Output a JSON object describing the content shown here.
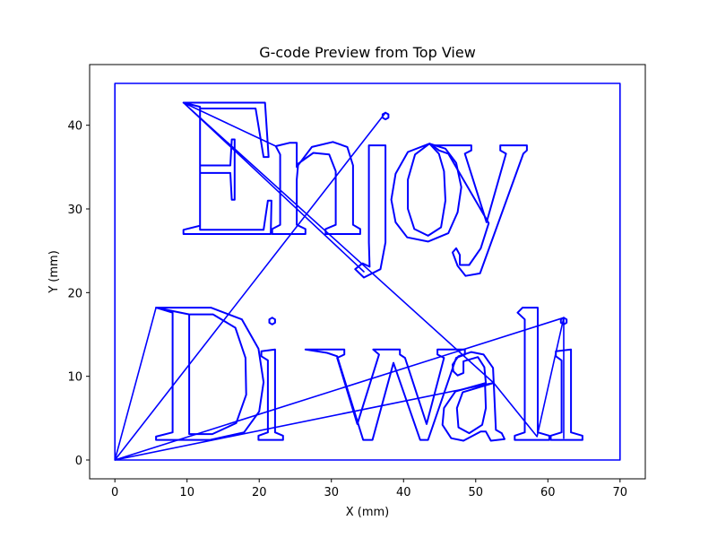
{
  "chart_data": {
    "type": "line",
    "title": "G-code Preview from Top View",
    "xlabel": "X (mm)",
    "ylabel": "Y (mm)",
    "xlim": [
      -3.5,
      73.5
    ],
    "ylim": [
      -2.25,
      47.25
    ],
    "xticks": [
      0,
      10,
      20,
      30,
      40,
      50,
      60,
      70
    ],
    "yticks": [
      0,
      10,
      20,
      30,
      40
    ],
    "grid": false,
    "legend": "none",
    "line_color": "#0000ff",
    "series": [
      {
        "role": "bed-border",
        "points": [
          [
            0,
            0
          ],
          [
            0,
            45
          ],
          [
            70,
            45
          ],
          [
            70,
            0
          ],
          [
            0,
            0
          ]
        ]
      },
      {
        "role": "travel-moves",
        "points": [
          [
            0,
            0
          ],
          [
            5.7,
            18.2
          ],
          [
            0,
            0
          ],
          [
            52.5,
            9.2
          ],
          [
            0,
            0
          ],
          [
            62.2,
            17
          ],
          [
            0,
            0
          ],
          [
            37.5,
            41.5
          ],
          [
            0,
            0
          ]
        ]
      },
      {
        "role": "crossing-moves",
        "points": [
          [
            9.5,
            42.7
          ],
          [
            52.5,
            9.2
          ],
          [
            9.5,
            42.7
          ],
          [
            22.3,
            37.5
          ],
          [
            9.5,
            42.7
          ],
          [
            34.5,
            22.5
          ]
        ]
      },
      {
        "role": "letter-E",
        "points": [
          [
            9.5,
            42.7
          ],
          [
            20.8,
            42.7
          ],
          [
            21.3,
            36.2
          ],
          [
            20.6,
            36.2
          ],
          [
            19.5,
            42
          ],
          [
            11.8,
            42
          ],
          [
            11.8,
            35.2
          ],
          [
            16,
            35.2
          ],
          [
            16.2,
            38.3
          ],
          [
            16.6,
            38.3
          ],
          [
            16.6,
            31.1
          ],
          [
            16.2,
            31.1
          ],
          [
            16,
            34.3
          ],
          [
            11.8,
            34.3
          ],
          [
            11.8,
            27.5
          ],
          [
            20.6,
            27.5
          ],
          [
            21.2,
            31
          ],
          [
            21.7,
            31
          ],
          [
            21.6,
            27
          ],
          [
            9.5,
            27
          ],
          [
            9.5,
            27.5
          ],
          [
            11.8,
            28
          ],
          [
            11.8,
            42.2
          ],
          [
            9.5,
            42.7
          ]
        ]
      },
      {
        "role": "letter-n",
        "points": [
          [
            22.3,
            37.5
          ],
          [
            24.2,
            37.9
          ],
          [
            25.2,
            37.9
          ],
          [
            25.2,
            35
          ],
          [
            27.3,
            37.4
          ],
          [
            30.2,
            38
          ],
          [
            32.2,
            37.4
          ],
          [
            33,
            35.2
          ],
          [
            33,
            28.1
          ],
          [
            34,
            27.6
          ],
          [
            34,
            27
          ],
          [
            29.2,
            27
          ],
          [
            29.2,
            27.6
          ],
          [
            30.6,
            28.1
          ],
          [
            30.6,
            34.5
          ],
          [
            29.7,
            36.5
          ],
          [
            27.5,
            36.7
          ],
          [
            25.4,
            35.4
          ],
          [
            25.2,
            33.5
          ],
          [
            25.2,
            28.1
          ],
          [
            26.4,
            27.6
          ],
          [
            26.4,
            27
          ],
          [
            21.8,
            27
          ],
          [
            21.8,
            27.6
          ],
          [
            22.9,
            28.1
          ],
          [
            22.9,
            36.5
          ],
          [
            22.3,
            37.5
          ]
        ]
      },
      {
        "role": "letter-j",
        "points": [
          [
            35.2,
            37.6
          ],
          [
            37.5,
            37.6
          ],
          [
            37.5,
            26
          ],
          [
            36.8,
            22.8
          ],
          [
            34.5,
            21.8
          ],
          [
            33.3,
            22.8
          ],
          [
            34.3,
            23.5
          ],
          [
            35.3,
            23.1
          ],
          [
            35.2,
            26
          ],
          [
            35.2,
            37.6
          ]
        ]
      },
      {
        "role": "letter-j-dot",
        "points": [
          [
            37.5,
            41.5
          ],
          [
            37.1,
            41.3
          ],
          [
            37.1,
            40.9
          ],
          [
            37.5,
            40.7
          ],
          [
            37.9,
            40.9
          ],
          [
            37.9,
            41.3
          ],
          [
            37.5,
            41.5
          ]
        ]
      },
      {
        "role": "letter-o",
        "points": [
          [
            43.6,
            37.8
          ],
          [
            40.6,
            36.8
          ],
          [
            38.9,
            34.2
          ],
          [
            38.3,
            31.1
          ],
          [
            38.9,
            28.4
          ],
          [
            40.5,
            26.6
          ],
          [
            43.4,
            26.1
          ],
          [
            46.2,
            27.1
          ],
          [
            47.5,
            29.6
          ],
          [
            48,
            32.6
          ],
          [
            47.3,
            35.5
          ],
          [
            45.8,
            37.2
          ],
          [
            43.6,
            37.8
          ],
          [
            41.6,
            36.5
          ],
          [
            40.6,
            33.5
          ],
          [
            40.6,
            30
          ],
          [
            41.5,
            27.6
          ],
          [
            43.4,
            26.8
          ],
          [
            45.2,
            27.8
          ],
          [
            45.8,
            31
          ],
          [
            45.6,
            34.5
          ],
          [
            44.9,
            36.6
          ],
          [
            43.6,
            37.8
          ]
        ]
      },
      {
        "role": "letter-y",
        "points": [
          [
            44,
            37.6
          ],
          [
            49.4,
            37.6
          ],
          [
            49.4,
            37
          ],
          [
            48.5,
            36.6
          ],
          [
            51.5,
            28.4
          ],
          [
            54.2,
            36.6
          ],
          [
            53.4,
            37
          ],
          [
            53.4,
            37.6
          ],
          [
            57.1,
            37.6
          ],
          [
            57.1,
            37
          ],
          [
            56.6,
            36.6
          ],
          [
            50.6,
            22.3
          ],
          [
            48.6,
            22
          ],
          [
            47.5,
            23.2
          ],
          [
            46.8,
            24.8
          ],
          [
            47.3,
            25.3
          ],
          [
            47.8,
            24.5
          ],
          [
            47.8,
            23.3
          ],
          [
            49.1,
            23.3
          ],
          [
            50.7,
            25.3
          ],
          [
            51.8,
            28.3
          ],
          [
            46.2,
            36.6
          ],
          [
            44.9,
            37
          ],
          [
            44,
            37.6
          ]
        ]
      },
      {
        "role": "letter-D",
        "points": [
          [
            5.7,
            18.2
          ],
          [
            13.3,
            18.2
          ],
          [
            17.6,
            16.8
          ],
          [
            19.9,
            13.3
          ],
          [
            20.6,
            9.3
          ],
          [
            20,
            5.8
          ],
          [
            17.9,
            3.3
          ],
          [
            13.2,
            2.4
          ],
          [
            5.7,
            2.4
          ],
          [
            5.7,
            2.8
          ],
          [
            8,
            3.3
          ],
          [
            8,
            17.6
          ],
          [
            5.7,
            18.2
          ],
          [
            10.3,
            17.4
          ],
          [
            13.6,
            17.4
          ],
          [
            16.7,
            15.8
          ],
          [
            18.1,
            12.2
          ],
          [
            18.2,
            7.8
          ],
          [
            16.8,
            4.4
          ],
          [
            13.5,
            3.1
          ],
          [
            10.3,
            3.1
          ],
          [
            10.3,
            17.4
          ]
        ]
      },
      {
        "role": "letter-i",
        "points": [
          [
            22.2,
            13.2
          ],
          [
            22.2,
            3.3
          ],
          [
            23.3,
            2.9
          ],
          [
            23.3,
            2.4
          ],
          [
            19.9,
            2.4
          ],
          [
            19.9,
            2.9
          ],
          [
            21.2,
            3.3
          ],
          [
            21.2,
            11.9
          ],
          [
            20.3,
            12.4
          ],
          [
            20.3,
            13
          ],
          [
            22.2,
            13.2
          ]
        ]
      },
      {
        "role": "letter-i-dot",
        "points": [
          [
            21.8,
            17
          ],
          [
            21.4,
            16.8
          ],
          [
            21.4,
            16.4
          ],
          [
            21.8,
            16.2
          ],
          [
            22.2,
            16.4
          ],
          [
            22.2,
            16.8
          ],
          [
            21.8,
            17
          ]
        ]
      },
      {
        "role": "letter-w",
        "points": [
          [
            26.4,
            13.2
          ],
          [
            31.8,
            13.2
          ],
          [
            31.8,
            12.6
          ],
          [
            30.8,
            12.2
          ],
          [
            33.6,
            4.3
          ],
          [
            36.6,
            12.6
          ],
          [
            35.8,
            13.2
          ],
          [
            39.5,
            13.2
          ],
          [
            39.5,
            12.6
          ],
          [
            40.2,
            12.2
          ],
          [
            43.2,
            4.3
          ],
          [
            45.6,
            12.2
          ],
          [
            44.7,
            12.6
          ],
          [
            44.7,
            13.2
          ],
          [
            48.5,
            13.2
          ],
          [
            48.5,
            12.6
          ],
          [
            47.3,
            12.2
          ],
          [
            43.4,
            2.4
          ],
          [
            42.3,
            2.4
          ],
          [
            38.6,
            11.6
          ],
          [
            35.7,
            2.4
          ],
          [
            34.4,
            2.4
          ],
          [
            30.8,
            12.4
          ],
          [
            29.4,
            12.8
          ],
          [
            26.4,
            13.2
          ]
        ]
      },
      {
        "role": "letter-a",
        "points": [
          [
            52.5,
            9.2
          ],
          [
            52.4,
            11
          ],
          [
            51.1,
            12.6
          ],
          [
            49.4,
            12.9
          ],
          [
            47.6,
            12.4
          ],
          [
            46.8,
            11.4
          ],
          [
            46.9,
            10.6
          ],
          [
            47.5,
            10.1
          ],
          [
            48.3,
            10.4
          ],
          [
            48.3,
            11.8
          ],
          [
            50.3,
            12.3
          ],
          [
            51.2,
            11.1
          ],
          [
            51.4,
            9.2
          ],
          [
            47.2,
            8.2
          ],
          [
            45.6,
            6.2
          ],
          [
            45.4,
            4.2
          ],
          [
            46.6,
            2.6
          ],
          [
            48.3,
            2.3
          ],
          [
            50.7,
            3.4
          ],
          [
            51.4,
            3.4
          ],
          [
            52.1,
            2.3
          ],
          [
            54,
            2.5
          ],
          [
            53.6,
            3.2
          ],
          [
            52.8,
            3.6
          ],
          [
            52.5,
            9.2
          ],
          [
            48.2,
            8.1
          ],
          [
            47.4,
            6.2
          ],
          [
            47.6,
            3.9
          ],
          [
            49.1,
            3.2
          ],
          [
            50.9,
            4.2
          ],
          [
            51.4,
            6.2
          ],
          [
            51.3,
            9
          ],
          [
            52.5,
            9.2
          ]
        ]
      },
      {
        "role": "letter-l",
        "points": [
          [
            56.5,
            18.2
          ],
          [
            58.6,
            18.2
          ],
          [
            58.6,
            3.3
          ],
          [
            60.2,
            2.9
          ],
          [
            60.2,
            2.4
          ],
          [
            55.4,
            2.4
          ],
          [
            55.4,
            2.9
          ],
          [
            56.8,
            3.3
          ],
          [
            56.8,
            16.8
          ],
          [
            55.8,
            17.6
          ],
          [
            56.5,
            18.2
          ]
        ]
      },
      {
        "role": "letter-i2",
        "points": [
          [
            63.2,
            13.2
          ],
          [
            63.2,
            3.3
          ],
          [
            64.8,
            2.9
          ],
          [
            64.8,
            2.4
          ],
          [
            60.4,
            2.4
          ],
          [
            60.4,
            2.9
          ],
          [
            61.9,
            3.3
          ],
          [
            61.9,
            11.9
          ],
          [
            61.1,
            12.4
          ],
          [
            61.1,
            13
          ],
          [
            63.2,
            13.2
          ]
        ]
      },
      {
        "role": "letter-i2-dot",
        "points": [
          [
            62.2,
            17
          ],
          [
            61.8,
            16.8
          ],
          [
            61.8,
            16.4
          ],
          [
            62.2,
            16.2
          ],
          [
            62.6,
            16.4
          ],
          [
            62.6,
            16.8
          ],
          [
            62.2,
            17
          ]
        ]
      },
      {
        "role": "inter-letter-moves",
        "points": [
          [
            52.5,
            9.2
          ],
          [
            58.5,
            2.8
          ],
          [
            62.2,
            17
          ],
          [
            62.2,
            2.6
          ]
        ]
      }
    ]
  }
}
